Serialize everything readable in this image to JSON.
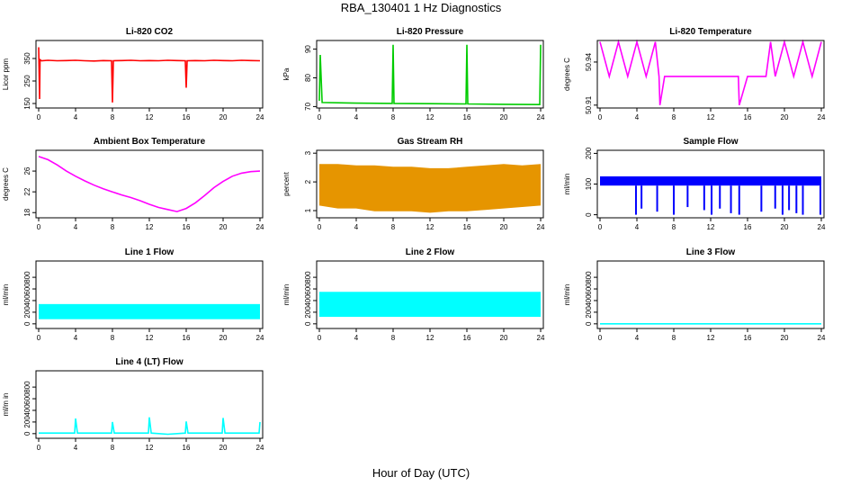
{
  "title": "RBA_130401  1 Hz Diagnostics",
  "footer_xlabel": "Hour of Day (UTC)",
  "colors": {
    "red": "#ff0000",
    "green": "#00cc00",
    "magenta": "#ff00ff",
    "orange": "#e69500",
    "blue": "#0000ff",
    "cyan": "#00ffff",
    "axis": "#000000"
  },
  "chart_data": [
    {
      "type": "line",
      "title": "Li-820 CO2",
      "xlabel": "",
      "ylabel": "Licor ppm",
      "xlim": [
        0,
        24
      ],
      "ylim": [
        130,
        430
      ],
      "xticks": [
        0,
        4,
        8,
        12,
        16,
        20,
        24
      ],
      "yticks": [
        150,
        250,
        350
      ],
      "color": "#ff0000",
      "series": [
        {
          "x": [
            0,
            0.1,
            0.15,
            0.3,
            1,
            2,
            3,
            4,
            5,
            6,
            7,
            7.9,
            8,
            8.1,
            9,
            10,
            11,
            12,
            13,
            14,
            15,
            15.9,
            16,
            16.1,
            17,
            18,
            19,
            20,
            21,
            22,
            23,
            24
          ],
          "y": [
            400,
            170,
            345,
            340,
            342,
            340,
            341,
            342,
            340,
            339,
            341,
            340,
            155,
            340,
            341,
            342,
            340,
            341,
            340,
            342,
            341,
            340,
            220,
            340,
            341,
            340,
            342,
            341,
            340,
            342,
            341,
            340
          ]
        }
      ]
    },
    {
      "type": "line",
      "title": "Li-820 Pressure",
      "xlabel": "",
      "ylabel": "kPa",
      "xlim": [
        0,
        24
      ],
      "ylim": [
        69.5,
        93
      ],
      "xticks": [
        0,
        4,
        8,
        12,
        16,
        20,
        24
      ],
      "yticks": [
        70,
        80,
        90
      ],
      "color": "#00cc00",
      "series": [
        {
          "x": [
            0,
            0.1,
            0.3,
            4,
            7.9,
            8,
            8.1,
            12,
            15.9,
            16,
            16.1,
            20,
            23.9,
            24
          ],
          "y": [
            72,
            88,
            71.4,
            71.2,
            71.1,
            91.5,
            71.1,
            71.0,
            70.9,
            91.5,
            70.9,
            70.8,
            70.7,
            91.5
          ]
        }
      ]
    },
    {
      "type": "line",
      "title": "Li-820 Temperature",
      "xlabel": "",
      "ylabel": "degrees C",
      "xlim": [
        0,
        24
      ],
      "ylim": [
        50.908,
        50.955
      ],
      "xticks": [
        0,
        4,
        8,
        12,
        16,
        20,
        24
      ],
      "yticks": [
        50.91,
        50.94
      ],
      "color": "#ff00ff",
      "series": [
        {
          "x": [
            0,
            1,
            2,
            3,
            4,
            5,
            6,
            6.4,
            6.5,
            7,
            10,
            14,
            15,
            15.1,
            16,
            18,
            18.5,
            19,
            20,
            21,
            22,
            23,
            24
          ],
          "y": [
            50.954,
            50.93,
            50.954,
            50.93,
            50.954,
            50.93,
            50.954,
            50.93,
            50.91,
            50.93,
            50.93,
            50.93,
            50.93,
            50.91,
            50.93,
            50.93,
            50.954,
            50.93,
            50.954,
            50.93,
            50.954,
            50.93,
            50.954
          ]
        }
      ]
    },
    {
      "type": "line",
      "title": "Ambient Box Temperature",
      "xlabel": "",
      "ylabel": "degrees C",
      "xlim": [
        0,
        24
      ],
      "ylim": [
        17,
        30
      ],
      "xticks": [
        0,
        4,
        8,
        12,
        16,
        20,
        24
      ],
      "yticks": [
        18,
        22,
        26
      ],
      "color": "#ff00ff",
      "series": [
        {
          "x": [
            0,
            1,
            2,
            3,
            4,
            5,
            6,
            7,
            8,
            9,
            10,
            11,
            12,
            13,
            14,
            15,
            16,
            17,
            18,
            19,
            20,
            21,
            22,
            23,
            24
          ],
          "y": [
            28.8,
            28.2,
            27.2,
            26.0,
            25.0,
            24.1,
            23.3,
            22.6,
            22.0,
            21.4,
            20.9,
            20.3,
            19.6,
            19.0,
            18.6,
            18.2,
            18.8,
            19.9,
            21.3,
            22.8,
            24.0,
            25.0,
            25.6,
            25.9,
            26.0
          ]
        }
      ]
    },
    {
      "type": "line",
      "title": "Gas Stream RH",
      "xlabel": "",
      "ylabel": "percent",
      "xlim": [
        0,
        24
      ],
      "ylim": [
        0.75,
        3.1
      ],
      "xticks": [
        0,
        4,
        8,
        12,
        16,
        20,
        24
      ],
      "yticks": [
        1.0,
        2.0,
        3.0
      ],
      "color": "#e69500",
      "series": [
        {
          "name": "upper",
          "x": [
            0,
            2,
            4,
            6,
            8,
            10,
            12,
            14,
            16,
            18,
            20,
            22,
            24
          ],
          "y": [
            2.6,
            2.6,
            2.55,
            2.55,
            2.5,
            2.5,
            2.45,
            2.45,
            2.5,
            2.55,
            2.6,
            2.55,
            2.6
          ]
        },
        {
          "name": "lower",
          "x": [
            0,
            2,
            4,
            6,
            8,
            10,
            12,
            14,
            16,
            18,
            20,
            22,
            24
          ],
          "y": [
            1.2,
            1.1,
            1.1,
            1.0,
            1.0,
            1.0,
            0.95,
            1.0,
            1.0,
            1.05,
            1.1,
            1.15,
            1.2
          ]
        }
      ]
    },
    {
      "type": "line",
      "title": "Sample Flow",
      "xlabel": "",
      "ylabel": "ml/min",
      "xlim": [
        0,
        24
      ],
      "ylim": [
        -10,
        210
      ],
      "xticks": [
        0,
        4,
        8,
        12,
        16,
        20,
        24
      ],
      "yticks": [
        0,
        100,
        200
      ],
      "color": "#0000ff",
      "series": [
        {
          "name": "band",
          "x": [
            0,
            24
          ],
          "y_low": [
            95,
            95
          ],
          "y_high": [
            125,
            125
          ]
        },
        {
          "name": "dropouts",
          "x": [
            3.9,
            4.5,
            6.2,
            8.0,
            9.5,
            11.3,
            12.1,
            13.0,
            14.2,
            15.1,
            17.5,
            19.0,
            19.8,
            20.5,
            21.3,
            22.0,
            23.9
          ],
          "y": [
            0,
            20,
            10,
            0,
            25,
            15,
            0,
            20,
            5,
            0,
            10,
            20,
            0,
            15,
            5,
            0,
            0
          ]
        }
      ]
    },
    {
      "type": "line",
      "title": "Line 1 Flow",
      "xlabel": "",
      "ylabel": "ml/min",
      "xlim": [
        0,
        24
      ],
      "ylim": [
        -80,
        1080
      ],
      "xticks": [
        0,
        4,
        8,
        12,
        16,
        20,
        24
      ],
      "yticks": [
        0,
        200,
        400,
        600,
        800
      ],
      "color": "#00ffff",
      "series": [
        {
          "name": "band",
          "x": [
            0,
            24
          ],
          "y_low": [
            80,
            80
          ],
          "y_high": [
            340,
            340
          ]
        }
      ]
    },
    {
      "type": "line",
      "title": "Line 2 Flow",
      "xlabel": "",
      "ylabel": "ml/min",
      "xlim": [
        0,
        24
      ],
      "ylim": [
        -80,
        1080
      ],
      "xticks": [
        0,
        4,
        8,
        12,
        16,
        20,
        24
      ],
      "yticks": [
        0,
        200,
        400,
        600,
        800
      ],
      "color": "#00ffff",
      "series": [
        {
          "name": "band",
          "x": [
            0,
            24
          ],
          "y_low": [
            120,
            120
          ],
          "y_high": [
            550,
            550
          ]
        }
      ]
    },
    {
      "type": "line",
      "title": "Line 3 Flow",
      "xlabel": "",
      "ylabel": "ml/min",
      "xlim": [
        0,
        24
      ],
      "ylim": [
        -80,
        1080
      ],
      "xticks": [
        0,
        4,
        8,
        12,
        16,
        20,
        24
      ],
      "yticks": [
        0,
        200,
        400,
        600,
        800
      ],
      "color": "#00ffff",
      "series": [
        {
          "x": [
            0,
            24
          ],
          "y": [
            0,
            0
          ]
        }
      ]
    },
    {
      "type": "line",
      "title": "Line 4 (LT) Flow",
      "xlabel": "",
      "ylabel": "ml/m in",
      "xlim": [
        0,
        24
      ],
      "ylim": [
        -80,
        1080
      ],
      "xticks": [
        0,
        4,
        8,
        12,
        16,
        20,
        24
      ],
      "yticks": [
        0,
        200,
        400,
        600,
        800
      ],
      "color": "#00ffff",
      "series": [
        {
          "x": [
            0,
            3.9,
            4.0,
            4.2,
            7.9,
            8.0,
            8.2,
            11.9,
            12.0,
            12.2,
            14,
            15.9,
            16.0,
            16.2,
            19.9,
            20.0,
            20.2,
            23.9,
            24
          ],
          "y": [
            10,
            10,
            260,
            10,
            10,
            200,
            10,
            10,
            280,
            10,
            -10,
            10,
            210,
            10,
            10,
            270,
            10,
            10,
            200
          ]
        }
      ]
    }
  ]
}
